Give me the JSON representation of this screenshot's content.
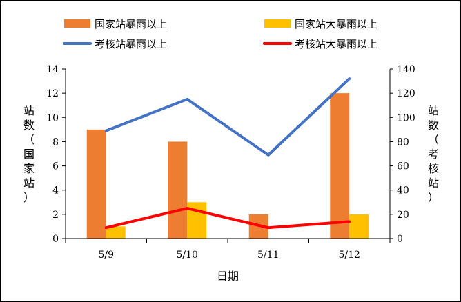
{
  "chart_data": {
    "type": "bar",
    "categories": [
      "5/9",
      "5/10",
      "5/11",
      "5/12"
    ],
    "xlabel": "日期",
    "ylabel_left_chars": [
      "站",
      "数",
      "（",
      "国",
      "家",
      "站",
      "）"
    ],
    "ylabel_right_chars": [
      "站",
      "数",
      "（",
      "考",
      "核",
      "站",
      "）"
    ],
    "y_left": {
      "range": [
        0,
        14
      ],
      "ticks": [
        "0",
        "2",
        "4",
        "6",
        "8",
        "10",
        "12",
        "14"
      ]
    },
    "y_right": {
      "range": [
        0,
        140
      ],
      "ticks": [
        "0",
        "20",
        "40",
        "60",
        "80",
        "100",
        "120",
        "140"
      ]
    },
    "series": [
      {
        "name": "国家站暴雨以上",
        "type": "bar",
        "axis": "left",
        "values": [
          9,
          8,
          2,
          12
        ],
        "color": "#ED7D31"
      },
      {
        "name": "国家站大暴雨以上",
        "type": "bar",
        "axis": "left",
        "values": [
          1,
          3,
          0,
          2
        ],
        "color": "#FFC000"
      },
      {
        "name": "考核站暴雨以上",
        "type": "line",
        "axis": "right",
        "values": [
          89,
          115,
          69,
          132
        ],
        "color": "#4472C4"
      },
      {
        "name": "考核站大暴雨以上",
        "type": "line",
        "axis": "right",
        "values": [
          9,
          25,
          9,
          14
        ],
        "color": "#FF0000"
      }
    ],
    "legend_position": "top",
    "grid": false
  }
}
